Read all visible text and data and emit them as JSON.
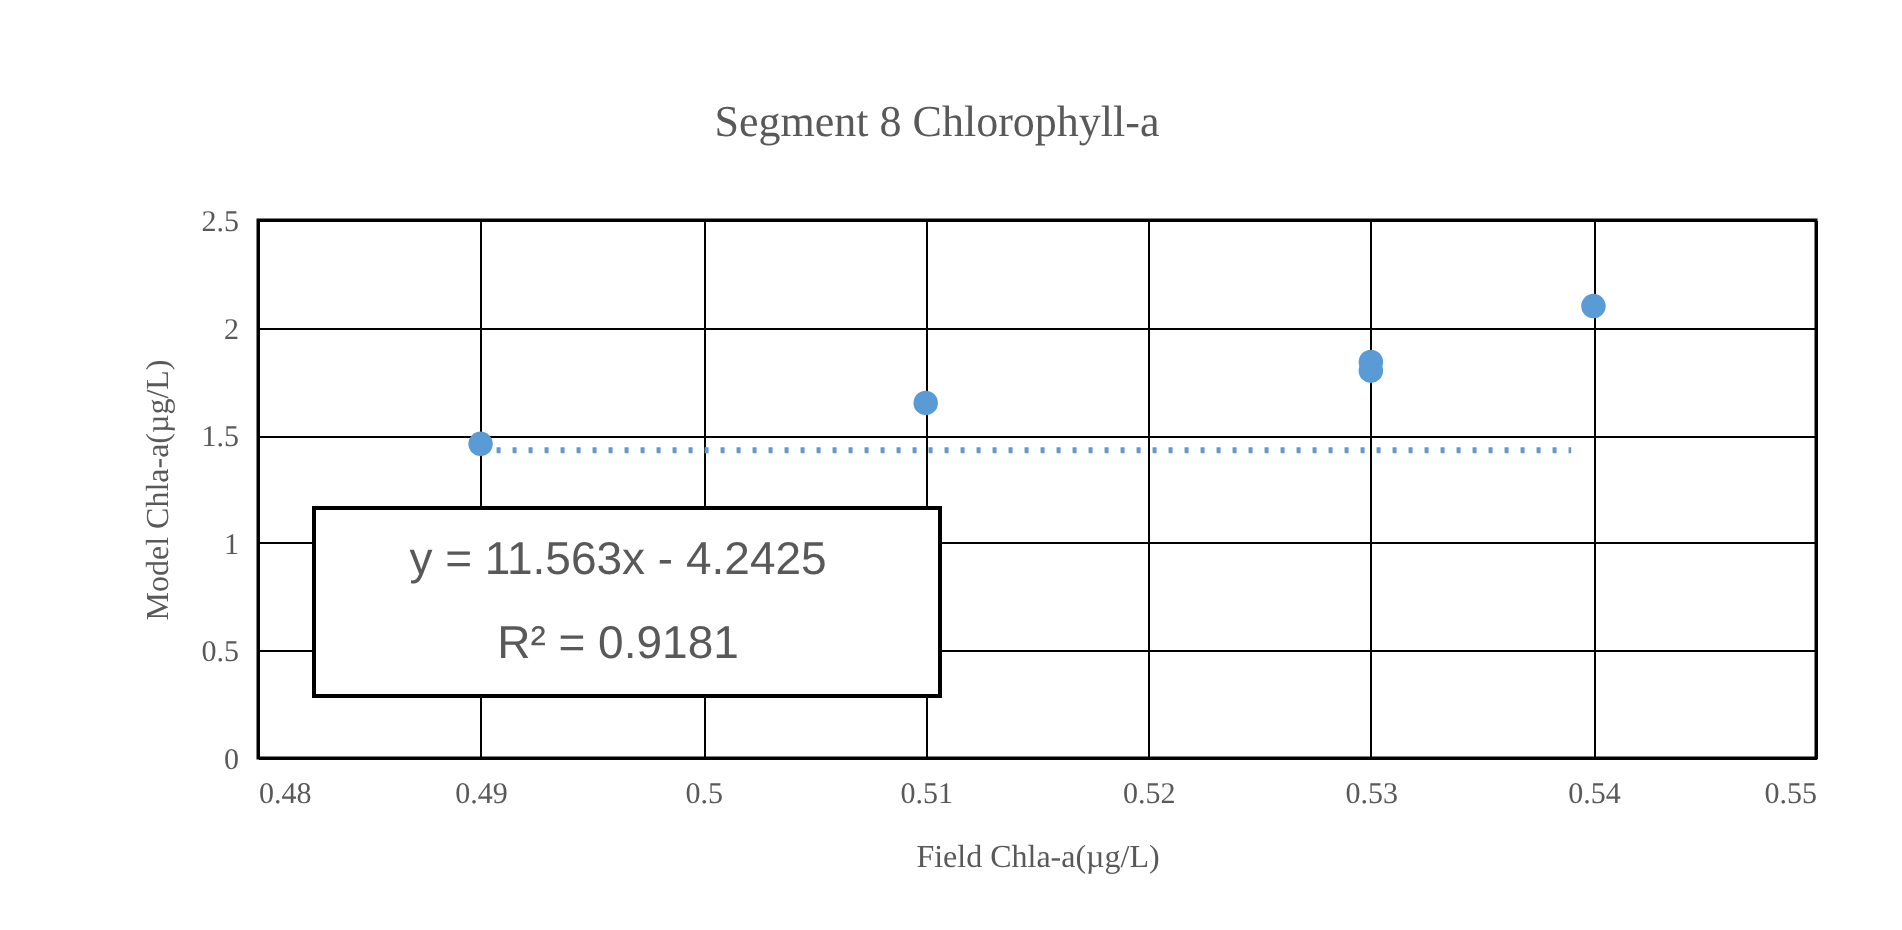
{
  "chart_data": {
    "type": "scatter",
    "title": "Segment 8 Chlorophyll-a",
    "xlabel": "Field Chla-a(µg/L)",
    "ylabel": "Model Chla-a(µg/L)",
    "series": [
      {
        "color": "#5b9bd5",
        "x": [
          0.49,
          0.51,
          0.53,
          0.53,
          0.54
        ],
        "values": [
          1.46,
          1.65,
          1.84,
          1.8,
          2.1
        ],
        "marker": "circle"
      },
      {
        "type": "line",
        "color": "#5b9bd5",
        "x": [
          0.49,
          0.539
        ],
        "values": [
          1.43,
          1.43
        ],
        "line_style": "dotted"
      }
    ],
    "annotations": [
      "y = 11.563x - 4.2425",
      "R² = 0.9181"
    ],
    "xlim": [
      0.48,
      0.55
    ],
    "xticks": [
      0.48,
      0.49,
      0.5,
      0.51,
      0.52,
      0.53,
      0.54,
      0.55
    ],
    "ylim": [
      0,
      2.5
    ],
    "yticks": [
      0,
      0.5,
      1,
      1.5,
      2,
      2.5
    ],
    "grid": true
  }
}
